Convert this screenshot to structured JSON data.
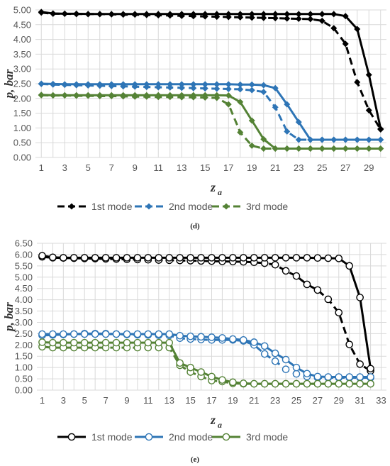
{
  "chart_data": [
    {
      "type": "line",
      "panel_label": "(d)",
      "xlabel": "z",
      "xlabel_sub": "a",
      "ylabel": "p, bar",
      "ylim": [
        0,
        5
      ],
      "yticks": [
        "0.00",
        "0.50",
        "1.00",
        "1.50",
        "2.00",
        "2.50",
        "3.00",
        "3.50",
        "4.00",
        "4.50",
        "5.00"
      ],
      "xticks": [
        1,
        3,
        5,
        7,
        9,
        11,
        13,
        15,
        17,
        19,
        21,
        23,
        25,
        27,
        29
      ],
      "xlim": [
        0.5,
        30.5
      ],
      "grid": true,
      "legend_position": "bottom",
      "marker": "diamond",
      "series": [
        {
          "name": "1st mode",
          "color": "#000000",
          "label": "1st mode",
          "solid": {
            "x": [
              1,
              2,
              3,
              4,
              5,
              6,
              7,
              8,
              9,
              10,
              11,
              12,
              13,
              14,
              15,
              16,
              17,
              18,
              19,
              20,
              21,
              22,
              23,
              24,
              25,
              26,
              27,
              28,
              29,
              30
            ],
            "y": [
              4.93,
              4.88,
              4.87,
              4.87,
              4.86,
              4.86,
              4.86,
              4.86,
              4.86,
              4.86,
              4.86,
              4.86,
              4.86,
              4.86,
              4.86,
              4.86,
              4.86,
              4.86,
              4.86,
              4.86,
              4.86,
              4.86,
              4.86,
              4.86,
              4.86,
              4.86,
              4.79,
              4.35,
              2.8,
              0.97
            ]
          },
          "dashed": {
            "x": [
              1,
              2,
              3,
              4,
              5,
              6,
              7,
              8,
              9,
              10,
              11,
              12,
              13,
              14,
              15,
              16,
              17,
              18,
              19,
              20,
              21,
              22,
              23,
              24,
              25,
              26,
              27,
              28,
              29,
              30
            ],
            "y": [
              4.91,
              4.87,
              4.87,
              4.86,
              4.86,
              4.86,
              4.85,
              4.84,
              4.84,
              4.83,
              4.82,
              4.81,
              4.8,
              4.79,
              4.78,
              4.77,
              4.76,
              4.75,
              4.74,
              4.73,
              4.72,
              4.71,
              4.7,
              4.69,
              4.63,
              4.38,
              3.85,
              2.55,
              1.6,
              0.95
            ]
          }
        },
        {
          "name": "2nd mode",
          "color": "#2e75b6",
          "label": "2nd mode",
          "solid": {
            "x": [
              1,
              2,
              3,
              4,
              5,
              6,
              7,
              8,
              9,
              10,
              11,
              12,
              13,
              14,
              15,
              16,
              17,
              18,
              19,
              20,
              21,
              22,
              23,
              24,
              25,
              26,
              27,
              28,
              29,
              30
            ],
            "y": [
              2.5,
              2.49,
              2.48,
              2.48,
              2.48,
              2.48,
              2.48,
              2.48,
              2.48,
              2.48,
              2.48,
              2.48,
              2.48,
              2.48,
              2.48,
              2.48,
              2.48,
              2.47,
              2.47,
              2.45,
              2.35,
              1.8,
              1.2,
              0.6,
              0.6,
              0.6,
              0.6,
              0.6,
              0.6,
              0.6
            ]
          },
          "dashed": {
            "x": [
              1,
              2,
              3,
              4,
              5,
              6,
              7,
              8,
              9,
              10,
              11,
              12,
              13,
              14,
              15,
              16,
              17,
              18,
              19,
              20,
              21,
              22,
              23,
              24,
              25,
              26,
              27,
              28,
              29,
              30
            ],
            "y": [
              2.49,
              2.47,
              2.46,
              2.45,
              2.44,
              2.43,
              2.42,
              2.41,
              2.4,
              2.39,
              2.38,
              2.37,
              2.36,
              2.35,
              2.34,
              2.33,
              2.32,
              2.31,
              2.28,
              2.22,
              1.7,
              0.88,
              0.6,
              0.6,
              0.6,
              0.6,
              0.6,
              0.6,
              0.6,
              0.6
            ]
          }
        },
        {
          "name": "3rd mode",
          "color": "#548235",
          "label": "3rd mode",
          "solid": {
            "x": [
              1,
              2,
              3,
              4,
              5,
              6,
              7,
              8,
              9,
              10,
              11,
              12,
              13,
              14,
              15,
              16,
              17,
              18,
              19,
              20,
              21,
              22,
              23,
              24,
              25,
              26,
              27,
              28,
              29,
              30
            ],
            "y": [
              2.12,
              2.11,
              2.11,
              2.11,
              2.11,
              2.11,
              2.11,
              2.11,
              2.11,
              2.11,
              2.11,
              2.11,
              2.11,
              2.11,
              2.11,
              2.11,
              2.1,
              1.88,
              1.25,
              0.62,
              0.3,
              0.3,
              0.3,
              0.3,
              0.3,
              0.3,
              0.3,
              0.3,
              0.3,
              0.3
            ]
          },
          "dashed": {
            "x": [
              1,
              2,
              3,
              4,
              5,
              6,
              7,
              8,
              9,
              10,
              11,
              12,
              13,
              14,
              15,
              16,
              17,
              18,
              19,
              20,
              21,
              22,
              23,
              24,
              25,
              26,
              27,
              28,
              29,
              30
            ],
            "y": [
              2.11,
              2.1,
              2.1,
              2.09,
              2.09,
              2.08,
              2.08,
              2.07,
              2.06,
              2.06,
              2.05,
              2.05,
              2.04,
              2.04,
              2.03,
              2.02,
              1.8,
              0.85,
              0.4,
              0.3,
              0.3,
              0.3,
              0.3,
              0.3,
              0.3,
              0.3,
              0.3,
              0.3,
              0.3,
              0.3
            ]
          }
        }
      ]
    },
    {
      "type": "line",
      "panel_label": "(e)",
      "xlabel": "z",
      "xlabel_sub": "a",
      "ylabel": "p, bar",
      "ylim": [
        0,
        6.5
      ],
      "yticks": [
        "0.00",
        "0.50",
        "1.00",
        "1.50",
        "2.00",
        "2.50",
        "3.00",
        "3.50",
        "4.00",
        "4.50",
        "5.00",
        "5.50",
        "6.00",
        "6.50"
      ],
      "xticks": [
        1,
        3,
        5,
        7,
        9,
        11,
        13,
        15,
        17,
        19,
        21,
        23,
        25,
        27,
        29,
        31,
        33
      ],
      "xlim": [
        0.5,
        33.5
      ],
      "grid": true,
      "legend_position": "bottom",
      "marker": "open-circle",
      "series": [
        {
          "name": "1st mode",
          "color": "#000000",
          "label": "1st mode",
          "solid": {
            "x": [
              1,
              2,
              3,
              4,
              5,
              6,
              7,
              8,
              9,
              10,
              11,
              12,
              13,
              14,
              15,
              16,
              17,
              18,
              19,
              20,
              21,
              22,
              23,
              24,
              25,
              26,
              27,
              28,
              29,
              30,
              31,
              32
            ],
            "y": [
              5.95,
              5.88,
              5.86,
              5.86,
              5.86,
              5.86,
              5.86,
              5.86,
              5.86,
              5.86,
              5.86,
              5.86,
              5.86,
              5.86,
              5.86,
              5.86,
              5.86,
              5.86,
              5.86,
              5.86,
              5.86,
              5.86,
              5.86,
              5.86,
              5.86,
              5.86,
              5.85,
              5.84,
              5.83,
              5.5,
              4.1,
              0.95
            ]
          },
          "dashed": {
            "x": [
              1,
              2,
              3,
              4,
              5,
              6,
              7,
              8,
              9,
              10,
              11,
              12,
              13,
              14,
              15,
              16,
              17,
              18,
              19,
              20,
              21,
              22,
              23,
              24,
              25,
              26,
              27,
              28,
              29,
              30,
              31,
              32
            ],
            "y": [
              5.9,
              5.86,
              5.85,
              5.84,
              5.83,
              5.82,
              5.81,
              5.8,
              5.79,
              5.78,
              5.77,
              5.76,
              5.75,
              5.74,
              5.73,
              5.72,
              5.71,
              5.7,
              5.69,
              5.68,
              5.66,
              5.62,
              5.55,
              5.28,
              5.05,
              4.68,
              4.43,
              4.02,
              3.43,
              2.02,
              1.15,
              0.85
            ]
          }
        },
        {
          "name": "2nd mode",
          "color": "#2e75b6",
          "label": "2nd mode",
          "solid": {
            "x": [
              1,
              2,
              3,
              4,
              5,
              6,
              7,
              8,
              9,
              10,
              11,
              12,
              13,
              14,
              15,
              16,
              17,
              18,
              19,
              20,
              21,
              22,
              23,
              24,
              25,
              26,
              27,
              28,
              29,
              30,
              31,
              32
            ],
            "y": [
              2.48,
              2.48,
              2.48,
              2.48,
              2.48,
              2.48,
              2.48,
              2.48,
              2.48,
              2.48,
              2.48,
              2.48,
              2.48,
              2.41,
              2.38,
              2.36,
              2.34,
              2.31,
              2.26,
              2.22,
              2.12,
              1.95,
              1.63,
              1.35,
              1.0,
              0.73,
              0.6,
              0.58,
              0.58,
              0.58,
              0.58,
              0.58
            ]
          },
          "dashed": {
            "x": [
              1,
              2,
              3,
              4,
              5,
              6,
              7,
              8,
              9,
              10,
              11,
              12,
              13,
              14,
              15,
              16,
              17,
              18,
              19,
              20,
              21,
              22,
              23,
              24,
              25,
              26,
              27,
              28,
              29,
              30,
              31,
              32
            ],
            "y": [
              2.42,
              2.44,
              2.46,
              2.48,
              2.5,
              2.5,
              2.5,
              2.48,
              2.46,
              2.45,
              2.44,
              2.43,
              2.42,
              2.3,
              2.26,
              2.24,
              2.22,
              2.22,
              2.22,
              2.18,
              2.0,
              1.6,
              1.28,
              0.92,
              0.72,
              0.6,
              0.55,
              0.55,
              0.55,
              0.55,
              0.55,
              0.55
            ]
          }
        },
        {
          "name": "3rd mode",
          "color": "#548235",
          "label": "3rd mode",
          "solid": {
            "x": [
              1,
              2,
              3,
              4,
              5,
              6,
              7,
              8,
              9,
              10,
              11,
              12,
              13,
              14,
              15,
              16,
              17,
              18,
              19,
              20,
              21,
              22,
              23,
              24,
              25,
              26,
              27,
              28,
              29,
              30,
              31,
              32
            ],
            "y": [
              2.12,
              2.1,
              2.1,
              2.1,
              2.1,
              2.1,
              2.1,
              2.1,
              2.1,
              2.1,
              2.1,
              2.1,
              2.1,
              1.2,
              1.0,
              0.8,
              0.6,
              0.45,
              0.35,
              0.3,
              0.28,
              0.28,
              0.28,
              0.28,
              0.28,
              0.28,
              0.28,
              0.28,
              0.28,
              0.28,
              0.28,
              0.28
            ]
          },
          "dashed": {
            "x": [
              1,
              2,
              3,
              4,
              5,
              6,
              7,
              8,
              9,
              10,
              11,
              12,
              13,
              14,
              15,
              16,
              17,
              18,
              19,
              20,
              21,
              22,
              23,
              24,
              25,
              26,
              27,
              28,
              29,
              30,
              31,
              32
            ],
            "y": [
              1.92,
              1.88,
              1.88,
              1.88,
              1.88,
              1.88,
              1.88,
              1.88,
              1.88,
              1.88,
              1.88,
              1.88,
              1.88,
              1.1,
              0.8,
              0.6,
              0.42,
              0.38,
              0.3,
              0.28,
              0.28,
              0.28,
              0.28,
              0.28,
              0.28,
              0.28,
              0.28,
              0.28,
              0.28,
              0.28,
              0.28,
              0.28
            ]
          }
        }
      ]
    }
  ]
}
